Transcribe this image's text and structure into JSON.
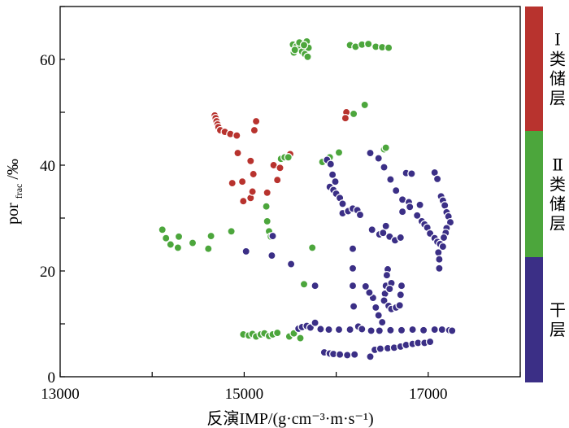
{
  "chart_data": {
    "type": "scatter",
    "xlabel": "反演IMP/(g·cm⁻³·m·s⁻¹)",
    "ylabel_main": "por",
    "ylabel_sub": "frac",
    "ylabel_unit": "/‰",
    "xlim": [
      13000,
      18000
    ],
    "ylim": [
      0,
      70
    ],
    "x_ticks": [
      13000,
      15000,
      17000
    ],
    "y_ticks": [
      0,
      20,
      40,
      60
    ],
    "grid": false,
    "legend_position": "right",
    "series": [
      {
        "name": "Ⅰ类储层",
        "color": "#b8332e",
        "points": [
          [
            14680,
            49.4
          ],
          [
            14690,
            48.9
          ],
          [
            14700,
            48.3
          ],
          [
            14710,
            47.7
          ],
          [
            14720,
            47.2
          ],
          [
            14740,
            46.6
          ],
          [
            14790,
            46.3
          ],
          [
            14850,
            45.9
          ],
          [
            14920,
            45.6
          ],
          [
            15130,
            48.3
          ],
          [
            15110,
            46.6
          ],
          [
            14930,
            42.3
          ],
          [
            15070,
            40.8
          ],
          [
            14870,
            36.6
          ],
          [
            14980,
            36.9
          ],
          [
            15100,
            38.3
          ],
          [
            15320,
            40.0
          ],
          [
            15500,
            42.1
          ],
          [
            15360,
            37.2
          ],
          [
            15390,
            39.5
          ],
          [
            15250,
            34.8
          ],
          [
            14990,
            33.2
          ],
          [
            15070,
            33.8
          ],
          [
            15090,
            35.0
          ],
          [
            16110,
            50.0
          ],
          [
            16100,
            48.9
          ]
        ]
      },
      {
        "name": "Ⅱ类储层",
        "color": "#4ca63c",
        "points": [
          [
            14110,
            27.8
          ],
          [
            14150,
            26.2
          ],
          [
            14200,
            25.0
          ],
          [
            14280,
            24.4
          ],
          [
            14290,
            26.5
          ],
          [
            14440,
            25.3
          ],
          [
            14610,
            24.2
          ],
          [
            14640,
            26.6
          ],
          [
            14860,
            27.5
          ],
          [
            15240,
            32.2
          ],
          [
            15250,
            29.4
          ],
          [
            15270,
            27.5
          ],
          [
            15290,
            26.5
          ],
          [
            15400,
            41.2
          ],
          [
            15440,
            41.5
          ],
          [
            15480,
            41.5
          ],
          [
            15650,
            17.5
          ],
          [
            15740,
            24.4
          ],
          [
            15850,
            40.6
          ],
          [
            15930,
            41.5
          ],
          [
            16030,
            42.4
          ],
          [
            16190,
            49.7
          ],
          [
            16310,
            51.4
          ],
          [
            16520,
            43.0
          ],
          [
            16540,
            43.3
          ],
          [
            14990,
            8.0
          ],
          [
            15050,
            7.8
          ],
          [
            15090,
            8.1
          ],
          [
            15130,
            7.6
          ],
          [
            15180,
            8.0
          ],
          [
            15220,
            8.2
          ],
          [
            15270,
            7.7
          ],
          [
            15310,
            8.0
          ],
          [
            15360,
            8.3
          ],
          [
            15490,
            7.6
          ],
          [
            15540,
            8.2
          ],
          [
            15610,
            7.3
          ],
          [
            15530,
            62.8
          ],
          [
            15570,
            62.5
          ],
          [
            15600,
            62.0
          ],
          [
            15630,
            61.5
          ],
          [
            15660,
            61.0
          ],
          [
            15690,
            60.5
          ],
          [
            15540,
            61.3
          ],
          [
            15600,
            63.2
          ],
          [
            15680,
            63.4
          ],
          [
            15700,
            62.2
          ],
          [
            15550,
            61.8
          ],
          [
            15650,
            62.7
          ],
          [
            16150,
            62.7
          ],
          [
            16210,
            62.4
          ],
          [
            16280,
            62.8
          ],
          [
            16350,
            62.9
          ],
          [
            16430,
            62.4
          ],
          [
            16500,
            62.3
          ],
          [
            16570,
            62.2
          ]
        ]
      },
      {
        "name": "干层",
        "color": "#3b2f86",
        "points": [
          [
            15020,
            23.7
          ],
          [
            15310,
            26.6
          ],
          [
            15300,
            22.9
          ],
          [
            15510,
            21.3
          ],
          [
            15770,
            17.2
          ],
          [
            15870,
            4.6
          ],
          [
            15930,
            4.4
          ],
          [
            15970,
            4.3
          ],
          [
            16040,
            4.2
          ],
          [
            16120,
            4.1
          ],
          [
            16200,
            4.2
          ],
          [
            16370,
            3.8
          ],
          [
            16420,
            5.1
          ],
          [
            16480,
            5.3
          ],
          [
            16560,
            5.4
          ],
          [
            16630,
            5.5
          ],
          [
            16700,
            5.7
          ],
          [
            16760,
            6.0
          ],
          [
            16830,
            6.2
          ],
          [
            16890,
            6.4
          ],
          [
            16960,
            6.4
          ],
          [
            17020,
            6.6
          ],
          [
            15590,
            9.1
          ],
          [
            15630,
            9.4
          ],
          [
            15680,
            9.6
          ],
          [
            15720,
            9.3
          ],
          [
            15770,
            10.2
          ],
          [
            15830,
            9.0
          ],
          [
            15920,
            8.9
          ],
          [
            16030,
            8.9
          ],
          [
            16150,
            8.9
          ],
          [
            16240,
            9.5
          ],
          [
            16280,
            9.0
          ],
          [
            16380,
            8.7
          ],
          [
            16470,
            8.7
          ],
          [
            16590,
            8.8
          ],
          [
            16710,
            8.8
          ],
          [
            16830,
            8.9
          ],
          [
            16950,
            8.8
          ],
          [
            17070,
            8.9
          ],
          [
            17150,
            8.9
          ],
          [
            17230,
            8.8
          ],
          [
            17260,
            8.7
          ],
          [
            15900,
            41.0
          ],
          [
            15940,
            40.2
          ],
          [
            15960,
            38.2
          ],
          [
            15990,
            36.9
          ],
          [
            15930,
            35.9
          ],
          [
            15970,
            35.3
          ],
          [
            16000,
            34.6
          ],
          [
            16040,
            33.8
          ],
          [
            16070,
            32.7
          ],
          [
            16070,
            30.9
          ],
          [
            16130,
            31.3
          ],
          [
            16180,
            31.8
          ],
          [
            16230,
            31.5
          ],
          [
            16260,
            30.6
          ],
          [
            16180,
            24.2
          ],
          [
            16180,
            20.5
          ],
          [
            16180,
            17.2
          ],
          [
            16190,
            13.3
          ],
          [
            16370,
            42.3
          ],
          [
            16460,
            41.3
          ],
          [
            16520,
            39.6
          ],
          [
            16590,
            37.3
          ],
          [
            16650,
            35.2
          ],
          [
            16720,
            33.5
          ],
          [
            16790,
            33.0
          ],
          [
            16800,
            32.1
          ],
          [
            16390,
            27.8
          ],
          [
            16470,
            26.9
          ],
          [
            16510,
            27.2
          ],
          [
            16540,
            28.5
          ],
          [
            16580,
            26.5
          ],
          [
            16640,
            25.8
          ],
          [
            16700,
            26.3
          ],
          [
            16720,
            31.2
          ],
          [
            16760,
            38.5
          ],
          [
            16820,
            38.4
          ],
          [
            16560,
            20.3
          ],
          [
            16550,
            19.2
          ],
          [
            16540,
            17.2
          ],
          [
            16530,
            15.7
          ],
          [
            16520,
            14.4
          ],
          [
            16570,
            13.4
          ],
          [
            16600,
            12.8
          ],
          [
            16650,
            13.1
          ],
          [
            16690,
            13.5
          ],
          [
            16700,
            15.5
          ],
          [
            16710,
            17.2
          ],
          [
            16600,
            17.7
          ],
          [
            16580,
            16.6
          ],
          [
            16500,
            10.3
          ],
          [
            16460,
            11.6
          ],
          [
            16430,
            13.1
          ],
          [
            16400,
            14.9
          ],
          [
            16360,
            15.9
          ],
          [
            16320,
            17.1
          ],
          [
            16910,
            32.5
          ],
          [
            16880,
            30.5
          ],
          [
            16930,
            29.4
          ],
          [
            16960,
            28.8
          ],
          [
            16990,
            28.2
          ],
          [
            17020,
            27.1
          ],
          [
            17070,
            26.2
          ],
          [
            17100,
            25.5
          ],
          [
            17130,
            25.1
          ],
          [
            17160,
            24.6
          ],
          [
            17110,
            23.5
          ],
          [
            17120,
            22.2
          ],
          [
            17120,
            20.5
          ],
          [
            17070,
            38.6
          ],
          [
            17100,
            37.4
          ],
          [
            17140,
            34.1
          ],
          [
            17160,
            33.3
          ],
          [
            17180,
            32.4
          ],
          [
            17200,
            31.1
          ],
          [
            17220,
            30.3
          ],
          [
            17240,
            29.2
          ],
          [
            17200,
            28.1
          ],
          [
            17190,
            27.2
          ],
          [
            17170,
            26.3
          ]
        ]
      }
    ]
  }
}
